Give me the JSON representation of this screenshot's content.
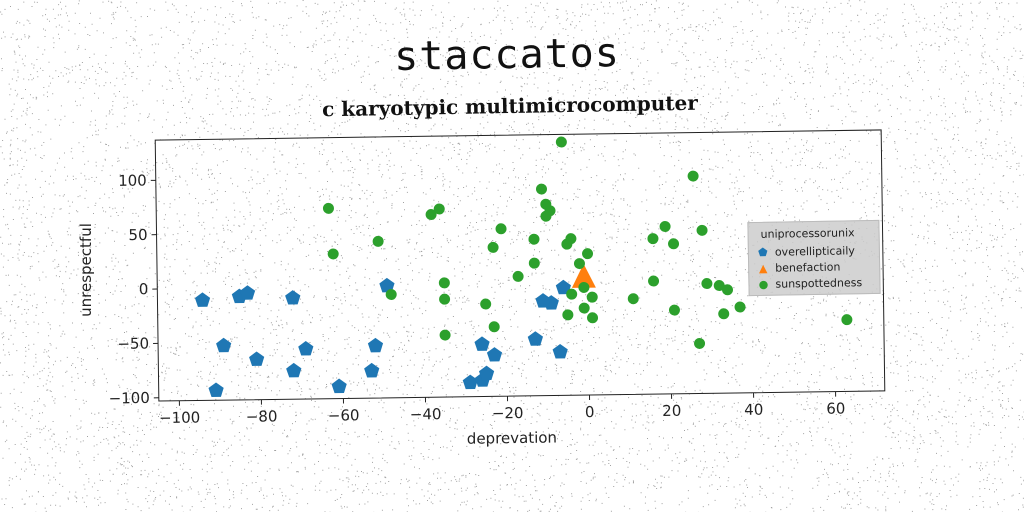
{
  "figure": {
    "suptitle": "staccatos"
  },
  "colors": {
    "blue": "#1f77b4",
    "orange": "#ff7f0e",
    "green": "#2ca02c"
  },
  "chart_data": {
    "type": "scatter",
    "title": "c karyotypic multimicrocomputer",
    "xlabel": "deprevation",
    "ylabel": "unrespectful",
    "xlim": [
      -105,
      72
    ],
    "ylim": [
      -103,
      137
    ],
    "xticks": [
      -100,
      -80,
      -60,
      -40,
      -20,
      0,
      20,
      40,
      60
    ],
    "yticks": [
      -100,
      -50,
      0,
      50,
      100
    ],
    "legend": {
      "title": "uniprocessorunix",
      "placement": "center-right"
    },
    "series": [
      {
        "name": "overellipticaily",
        "marker": "pentagon",
        "color": "#1f77b4",
        "points": [
          [
            -94,
            -11
          ],
          [
            -85,
            -8
          ],
          [
            -83,
            -5
          ],
          [
            -72,
            -10
          ],
          [
            -49,
            0
          ],
          [
            -89,
            -53
          ],
          [
            -81,
            -66
          ],
          [
            -69,
            -57
          ],
          [
            -52,
            -55
          ],
          [
            -72,
            -77
          ],
          [
            -91,
            -94
          ],
          [
            -61,
            -92
          ],
          [
            -53,
            -78
          ],
          [
            -29,
            -90
          ],
          [
            -26,
            -88
          ],
          [
            -25,
            -82
          ],
          [
            -23,
            -65
          ],
          [
            -26,
            -55
          ],
          [
            -13,
            -51
          ],
          [
            -7,
            -63
          ],
          [
            -9,
            -18
          ],
          [
            -11,
            -16
          ],
          [
            -6,
            -4
          ]
        ]
      },
      {
        "name": "benefaction",
        "marker": "triangle",
        "color": "#ff7f0e",
        "points": [
          [
            -1,
            4
          ]
        ]
      },
      {
        "name": "sunspottedness",
        "marker": "circle",
        "color": "#2ca02c",
        "points": [
          [
            -63,
            72
          ],
          [
            -62,
            30
          ],
          [
            -51,
            41
          ],
          [
            -48,
            -8
          ],
          [
            -38,
            65
          ],
          [
            -36,
            70
          ],
          [
            -35,
            2
          ],
          [
            -35,
            -13
          ],
          [
            -35,
            -46
          ],
          [
            -23,
            34
          ],
          [
            -21,
            51
          ],
          [
            -25,
            -18
          ],
          [
            -23,
            -39
          ],
          [
            -17,
            7
          ],
          [
            -13,
            41
          ],
          [
            -13,
            19
          ],
          [
            -11,
            87
          ],
          [
            -10,
            62
          ],
          [
            -9,
            67
          ],
          [
            -10,
            73
          ],
          [
            -6,
            130
          ],
          [
            -5,
            36
          ],
          [
            -4,
            41
          ],
          [
            -2,
            18
          ],
          [
            0,
            27
          ],
          [
            -1,
            -4
          ],
          [
            -1,
            -23
          ],
          [
            -4,
            -10
          ],
          [
            -5,
            -29
          ],
          [
            1,
            -13
          ],
          [
            1,
            -32
          ],
          [
            11,
            -15
          ],
          [
            16,
            40
          ],
          [
            16,
            1
          ],
          [
            19,
            51
          ],
          [
            21,
            35
          ],
          [
            21,
            -26
          ],
          [
            26,
            97
          ],
          [
            27,
            -57
          ],
          [
            28,
            47
          ],
          [
            29,
            -2
          ],
          [
            32,
            -4
          ],
          [
            33,
            -30
          ],
          [
            34,
            -8
          ],
          [
            37,
            -24
          ],
          [
            63,
            -37
          ]
        ]
      }
    ]
  }
}
